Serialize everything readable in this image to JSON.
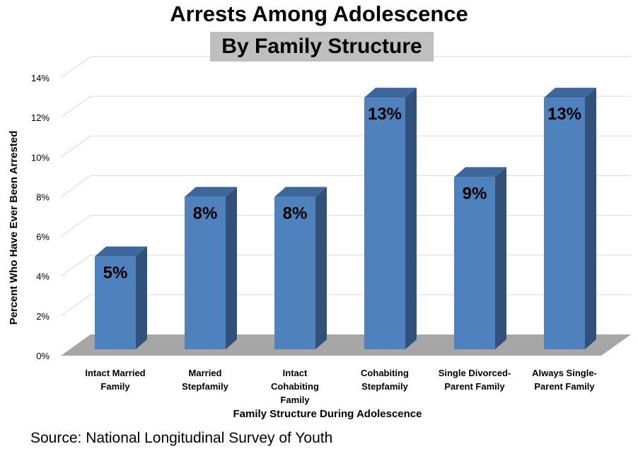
{
  "chart_data": {
    "type": "bar",
    "title": "Arrests Among Adolescence",
    "subtitle": "By Family Structure",
    "categories": [
      [
        "Intact Married",
        "Family"
      ],
      [
        "Married",
        "Stepfamily"
      ],
      [
        "Intact",
        "Cohabiting",
        "Family"
      ],
      [
        "Cohabiting",
        "Stepfamily"
      ],
      [
        "Single Divorced-",
        "Parent Family"
      ],
      [
        "Always Single-",
        "Parent Family"
      ]
    ],
    "values": [
      5,
      8,
      8,
      13,
      9,
      13
    ],
    "data_labels": [
      "5%",
      "8%",
      "8%",
      "13%",
      "9%",
      "13%"
    ],
    "xlabel": "Family Structure During Adolescence",
    "ylabel": "Percent Who Have Ever Been Arrested",
    "ylim": [
      0,
      14
    ],
    "yticks": [
      0,
      2,
      4,
      6,
      8,
      10,
      12,
      14
    ],
    "ytick_labels": [
      "0%",
      "2%",
      "4%",
      "6%",
      "8%",
      "10%",
      "12%",
      "14%"
    ],
    "grid": true,
    "colors": {
      "bar_front": "#4f81bd",
      "bar_side": "#31507a",
      "bar_top": "#3d669a",
      "floor": "#a6a6a6",
      "grid": "#d9d9d9"
    }
  },
  "source": "Source:  National Longitudinal Survey of Youth"
}
